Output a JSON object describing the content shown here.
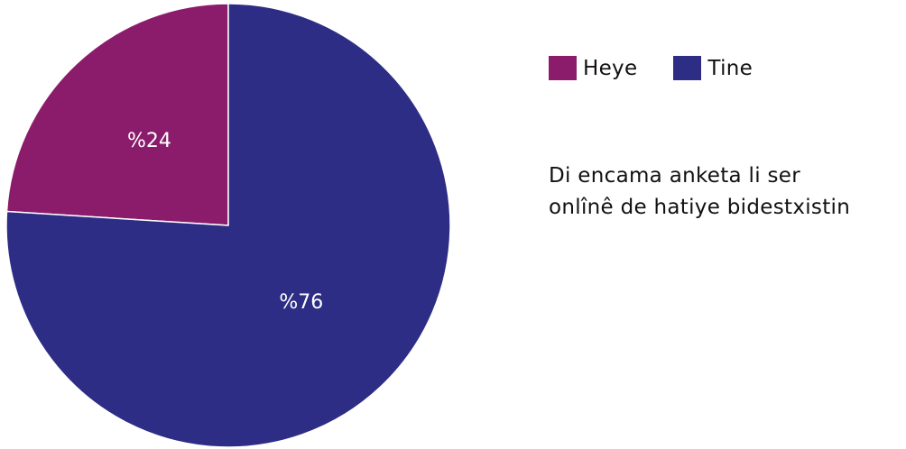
{
  "chart_data": {
    "type": "pie",
    "slices": [
      {
        "label": "Heye",
        "value": 24,
        "value_label": "%24",
        "color": "#8b1c6b"
      },
      {
        "label": "Tine",
        "value": 76,
        "value_label": "%76",
        "color": "#2d2d85"
      }
    ],
    "legend_position": "top-right",
    "start_angle_deg": 0,
    "direction": "counterclockwise"
  },
  "legend": {
    "items": [
      {
        "label": "Heye",
        "color": "#8b1c6b"
      },
      {
        "label": "Tine",
        "color": "#2d2d85"
      }
    ]
  },
  "note": {
    "line1": "Di encama anketa li ser",
    "line2": "onlînê de hatiye bidestxistin"
  },
  "colors": {
    "slice_border": "#ffffff",
    "label_text": "#ffffff"
  }
}
